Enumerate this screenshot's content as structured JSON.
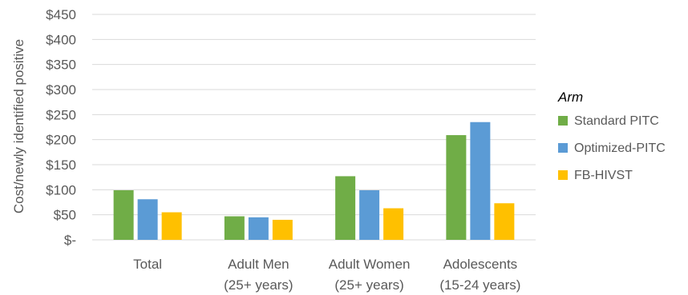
{
  "chart_data": {
    "type": "bar",
    "title": "",
    "xlabel": "",
    "ylabel": "Cost/newly identified positive",
    "ylim": [
      0,
      450
    ],
    "yticks": [
      "$-",
      "$50",
      "$100",
      "$150",
      "$200",
      "$250",
      "$300",
      "$350",
      "$400",
      "$450"
    ],
    "categories": [
      [
        "Total"
      ],
      [
        "Adult Men",
        "(25+ years)"
      ],
      [
        "Adult Women",
        "(25+ years)"
      ],
      [
        "Adolescents",
        "(15-24 years)"
      ]
    ],
    "legend_title": "Arm",
    "legend_position": "right",
    "grid": true,
    "series": [
      {
        "name": "Standard PITC",
        "color": "#70AD47",
        "values": [
          99,
          47,
          127,
          209
        ]
      },
      {
        "name": "Optimized-PITC",
        "color": "#5B9BD5",
        "values": [
          81,
          45,
          99,
          235
        ]
      },
      {
        "name": "FB-HIVST",
        "color": "#FFC000",
        "values": [
          55,
          40,
          63,
          73
        ]
      }
    ]
  }
}
